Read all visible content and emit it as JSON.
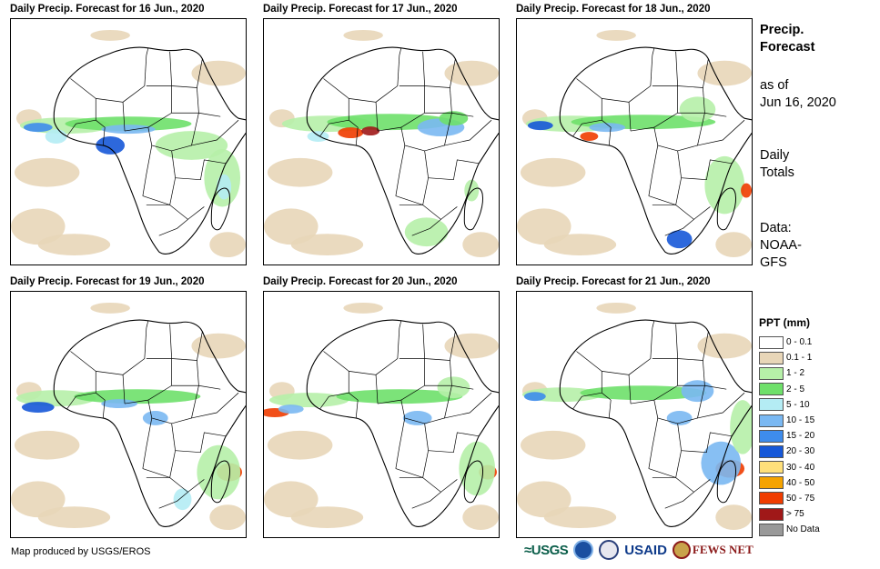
{
  "panels": [
    {
      "title": "Daily Precip. Forecast for 16 Jun., 2020"
    },
    {
      "title": "Daily Precip. Forecast for 17 Jun., 2020"
    },
    {
      "title": "Daily Precip. Forecast for 18 Jun., 2020"
    },
    {
      "title": "Daily Precip. Forecast for 19 Jun., 2020"
    },
    {
      "title": "Daily Precip. Forecast for 20 Jun., 2020"
    },
    {
      "title": "Daily Precip. Forecast for 21 Jun., 2020"
    }
  ],
  "sidebar": {
    "title_line1": "Precip.",
    "title_line2": "Forecast",
    "asof_line1": "as of",
    "asof_line2": "Jun 16, 2020",
    "totals_line1": "Daily",
    "totals_line2": "Totals",
    "data_line1": "Data:",
    "data_line2": "NOAA-",
    "data_line3": "GFS"
  },
  "legend": {
    "title": "PPT (mm)",
    "items": [
      {
        "label": "0 - 0.1",
        "color": "#ffffff"
      },
      {
        "label": "0.1 - 1",
        "color": "#e8d6b8"
      },
      {
        "label": "1 - 2",
        "color": "#b6f0a8"
      },
      {
        "label": "2 - 5",
        "color": "#6ee06a"
      },
      {
        "label": "5 - 10",
        "color": "#b4ecf4"
      },
      {
        "label": "10 - 15",
        "color": "#7ab8f2"
      },
      {
        "label": "15 - 20",
        "color": "#3e8cec"
      },
      {
        "label": "20 - 30",
        "color": "#1658d8"
      },
      {
        "label": "30 - 40",
        "color": "#ffe07a"
      },
      {
        "label": "40 - 50",
        "color": "#f5a300"
      },
      {
        "label": "50 - 75",
        "color": "#f03c00"
      },
      {
        "label": "> 75",
        "color": "#a01818"
      },
      {
        "label": "No Data",
        "color": "#999999"
      }
    ]
  },
  "footer": {
    "credit": "Map produced by USGS/EROS",
    "logo_usgs": "≈USGS",
    "logo_usaid": "USAID",
    "logo_fews": "FEWS NET"
  }
}
